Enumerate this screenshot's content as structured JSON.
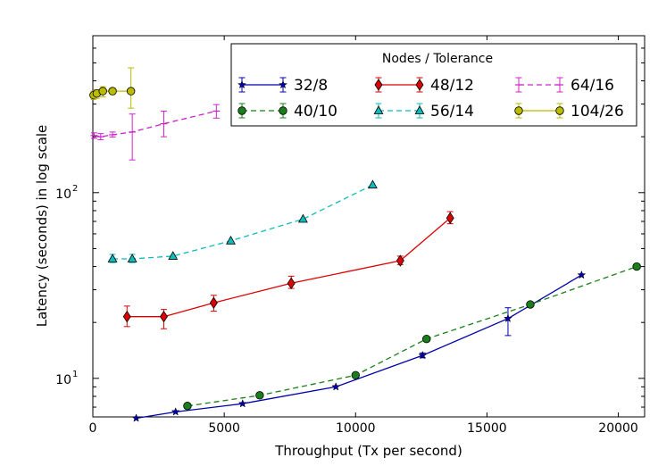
{
  "chart_data": {
    "type": "line",
    "xlabel": "Throughput (Tx per second)",
    "ylabel": "Latency (seconds) in log scale",
    "xlim": [
      0,
      21000
    ],
    "ylim": [
      6.2,
      700
    ],
    "yscale": "log",
    "xticks": [
      {
        "value": 0,
        "label": "0"
      },
      {
        "value": 5000,
        "label": "5000"
      },
      {
        "value": 10000,
        "label": "10000"
      },
      {
        "value": 15000,
        "label": "15000"
      },
      {
        "value": 20000,
        "label": "20000"
      }
    ],
    "yticks": [
      {
        "value": 10,
        "base": "10",
        "exp": "1"
      },
      {
        "value": 100,
        "base": "10",
        "exp": "2"
      }
    ],
    "legend_title": "Nodes / Tolerance",
    "legend_position": "top-right",
    "series": [
      {
        "name": "32/8",
        "color": "#0000aa",
        "marker": "star",
        "dash": "solid",
        "points": [
          {
            "x": 1650,
            "y": 6.1
          },
          {
            "x": 3150,
            "y": 6.6
          },
          {
            "x": 5700,
            "y": 7.3
          },
          {
            "x": 9250,
            "y": 9.0
          },
          {
            "x": 12550,
            "y": 13.3,
            "lo": 12.9,
            "hi": 13.7
          },
          {
            "x": 15800,
            "y": 21.0,
            "lo": 17.0,
            "hi": 24.0
          },
          {
            "x": 18600,
            "y": 36.0
          }
        ]
      },
      {
        "name": "40/10",
        "color": "#1a7f1a",
        "marker": "circle",
        "dash": "dashed",
        "points": [
          {
            "x": 3600,
            "y": 7.1
          },
          {
            "x": 6350,
            "y": 8.1
          },
          {
            "x": 10000,
            "y": 10.4
          },
          {
            "x": 12700,
            "y": 16.3
          },
          {
            "x": 16650,
            "y": 25.0
          },
          {
            "x": 20700,
            "y": 40.0
          }
        ]
      },
      {
        "name": "48/12",
        "color": "#dd0000",
        "marker": "diamond",
        "dash": "solid",
        "points": [
          {
            "x": 1300,
            "y": 21.5,
            "lo": 19.0,
            "hi": 24.5
          },
          {
            "x": 2700,
            "y": 21.5,
            "lo": 18.5,
            "hi": 23.5
          },
          {
            "x": 4600,
            "y": 25.5,
            "lo": 23.0,
            "hi": 28.0
          },
          {
            "x": 7550,
            "y": 32.5,
            "lo": 30.5,
            "hi": 35.5
          },
          {
            "x": 11700,
            "y": 43.0,
            "lo": 41.0,
            "hi": 45.5
          },
          {
            "x": 13600,
            "y": 73.0,
            "lo": 68.0,
            "hi": 79.0
          }
        ]
      },
      {
        "name": "56/14",
        "color": "#11bbbb",
        "marker": "triangle",
        "dash": "dashed",
        "points": [
          {
            "x": 750,
            "y": 44.0,
            "lo": 42.0,
            "hi": 46.5
          },
          {
            "x": 1500,
            "y": 44.0,
            "lo": 42.0,
            "hi": 46.5
          },
          {
            "x": 3050,
            "y": 45.5
          },
          {
            "x": 5250,
            "y": 55.0
          },
          {
            "x": 8000,
            "y": 72.0
          },
          {
            "x": 10650,
            "y": 110.0
          }
        ]
      },
      {
        "name": "64/16",
        "color": "#cc22cc",
        "marker": "tick",
        "dash": "dashed",
        "points": [
          {
            "x": 50,
            "y": 203.0,
            "lo": 196.0,
            "hi": 210.0
          },
          {
            "x": 300,
            "y": 200.0,
            "lo": 193.0,
            "hi": 208.0
          },
          {
            "x": 750,
            "y": 205.0,
            "lo": 199.0,
            "hi": 212.0
          },
          {
            "x": 1500,
            "y": 212.0,
            "lo": 150.0,
            "hi": 265.0
          },
          {
            "x": 2700,
            "y": 235.0,
            "lo": 200.0,
            "hi": 275.0
          },
          {
            "x": 4700,
            "y": 275.0,
            "lo": 252.0,
            "hi": 298.0
          }
        ]
      },
      {
        "name": "104/26",
        "color": "#bbbb00",
        "marker": "circle",
        "dash": "solid",
        "points": [
          {
            "x": 30,
            "y": 335.0,
            "lo": 318.0,
            "hi": 352.0
          },
          {
            "x": 150,
            "y": 342.0,
            "lo": 322.0,
            "hi": 358.0
          },
          {
            "x": 380,
            "y": 352.0,
            "lo": 328.0,
            "hi": 372.0
          },
          {
            "x": 750,
            "y": 352.0,
            "lo": 338.0,
            "hi": 365.0
          },
          {
            "x": 1450,
            "y": 352.0,
            "lo": 285.0,
            "hi": 470.0
          }
        ]
      }
    ]
  }
}
